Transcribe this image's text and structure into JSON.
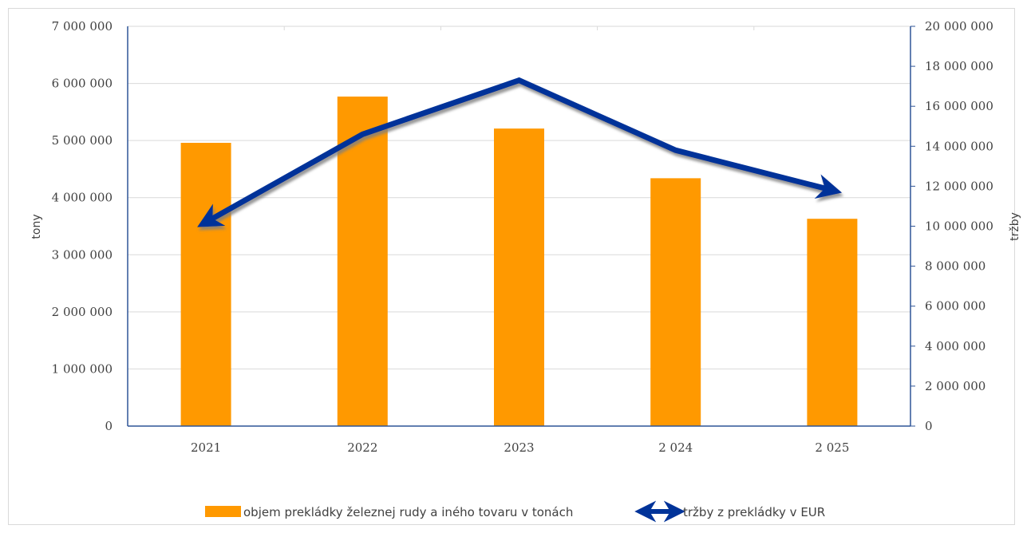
{
  "chart_data": {
    "type": "bar+line",
    "categories": [
      "2021",
      "2022",
      "2023",
      "2 024",
      "2 025"
    ],
    "series": [
      {
        "name": "objem prekládky železnej rudy a iného tovaru v tonách",
        "type": "bar",
        "axis": "left",
        "values": [
          4960000,
          5770000,
          5210000,
          4340000,
          3630000
        ],
        "color": "#ff9900"
      },
      {
        "name": "tržby z prekládky v EUR",
        "type": "line",
        "axis": "right",
        "values": [
          10200000,
          14600000,
          17300000,
          13800000,
          11800000
        ],
        "color": "#003399"
      }
    ],
    "y_left": {
      "label": "tony",
      "ylim": [
        0,
        7000000
      ],
      "ticks": [
        "0",
        "1 000 000",
        "2 000 000",
        "3 000 000",
        "4 000 000",
        "5 000 000",
        "6 000 000",
        "7 000 000"
      ]
    },
    "y_right": {
      "label": "tržby",
      "ylim": [
        0,
        20000000
      ],
      "ticks": [
        "0",
        "2 000 000",
        "4 000 000",
        "6 000 000",
        "8 000 000",
        "10 000 000",
        "12 000 000",
        "14 000 000",
        "16 000 000",
        "18 000 000",
        "20 000 000"
      ]
    },
    "grid": true,
    "legend": "bottom"
  }
}
